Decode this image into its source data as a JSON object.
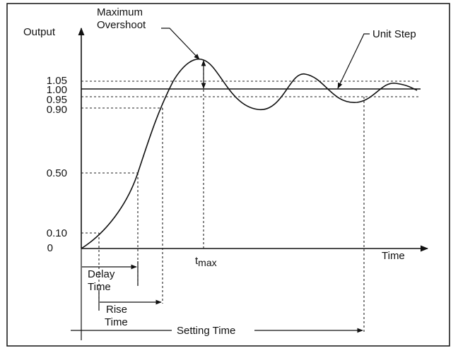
{
  "y_axis_label": "Output",
  "x_axis_label": "Time",
  "y_levels": [
    "1.05",
    "1.00",
    "0.95",
    "0.90",
    "0.50",
    "0.10",
    "0"
  ],
  "max_overshoot": [
    "Maximum",
    "Overshoot"
  ],
  "unit_step": "Unit Step",
  "tmax": {
    "t": "t",
    "sub": "max"
  },
  "delay_time": [
    "Delay",
    "Time"
  ],
  "rise_time": [
    "Rise",
    "Time"
  ],
  "setting_time": "Setting Time"
}
